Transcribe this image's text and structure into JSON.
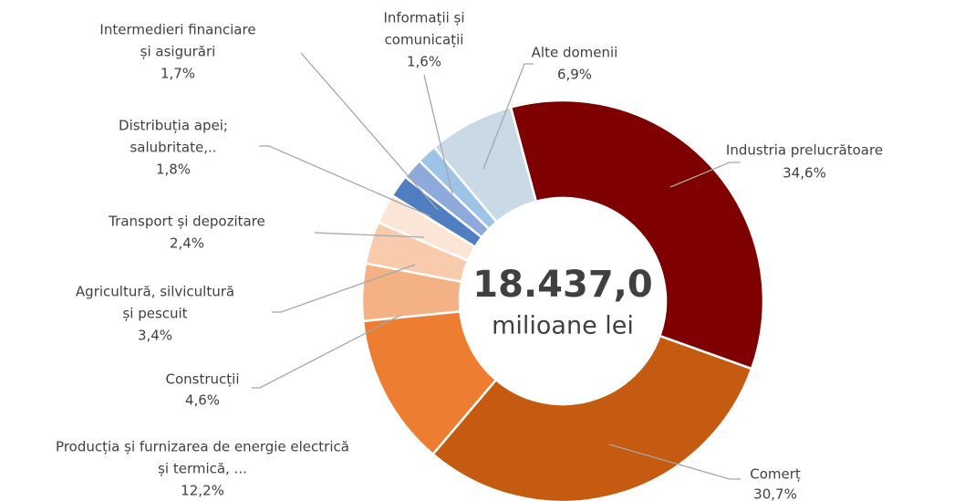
{
  "chart_data": {
    "type": "donut",
    "center_title": "18.437,0",
    "center_subtitle": "milioane lei",
    "categories": [
      [
        "Industria prelucrătoare"
      ],
      [
        "Comerț"
      ],
      [
        "Producția și furnizarea de energie electrică",
        "și termică, ..."
      ],
      [
        "Construcții"
      ],
      [
        "Agricultură, silvicultură",
        "și pescuit"
      ],
      [
        "Transport și depozitare"
      ],
      [
        "Distribuția apei;",
        "salubritate,.."
      ],
      [
        "Intermedieri financiare",
        "și asigurări"
      ],
      [
        "Informații și",
        "comunicații"
      ],
      [
        "Alte domenii"
      ]
    ],
    "values": [
      34.6,
      30.7,
      12.2,
      4.6,
      3.4,
      2.4,
      1.8,
      1.7,
      1.6,
      6.9
    ],
    "value_labels": [
      "34,6%",
      "30,7%",
      "12,2%",
      "4,6%",
      "3,4%",
      "2,4%",
      "1,8%",
      "1,7%",
      "1,6%",
      "6,9%"
    ],
    "colors": [
      "#7f0000",
      "#c55a11",
      "#ed7d31",
      "#f4b183",
      "#f8cbad",
      "#fbe5d6",
      "#4f7fc0",
      "#8eaadb",
      "#9dc3e6",
      "#c9d9e5"
    ]
  }
}
